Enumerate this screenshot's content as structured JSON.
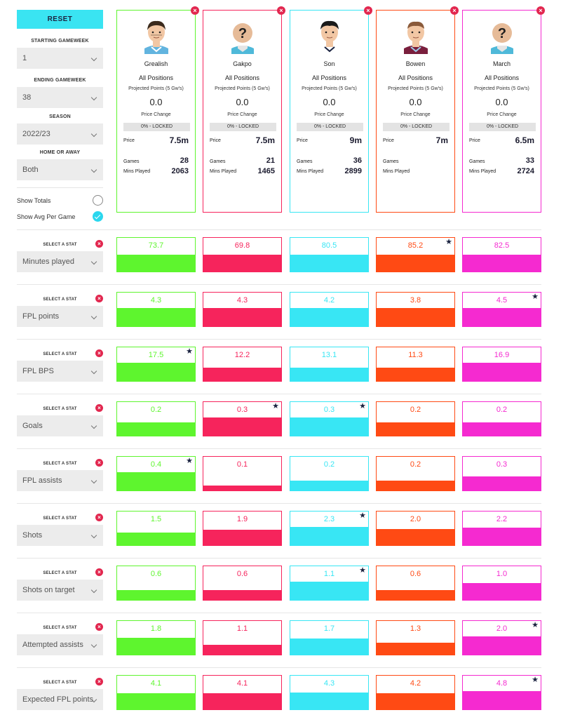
{
  "sidebar": {
    "reset_label": "RESET",
    "starting_gameweek_label": "STARTING GAMEWEEK",
    "starting_gameweek_value": "1",
    "ending_gameweek_label": "ENDING GAMEWEEK",
    "ending_gameweek_value": "38",
    "season_label": "SEASON",
    "season_value": "2022/23",
    "home_away_label": "HOME OR AWAY",
    "home_away_value": "Both",
    "show_totals_label": "Show Totals",
    "show_totals_checked": false,
    "show_avg_label": "Show Avg Per Game",
    "show_avg_checked": true
  },
  "player_labels": {
    "projected": "Projected Points (5 Gw's)",
    "price_change": "Price Change",
    "price": "Price",
    "games": "Games",
    "mins": "Mins Played"
  },
  "players": [
    {
      "name": "Grealish",
      "position": "All Positions",
      "projected": "0.0",
      "price_change": "0% - LOCKED",
      "price": "7.5m",
      "games": "28",
      "mins": "2063",
      "color": "#5ef52e",
      "face": "grealish"
    },
    {
      "name": "Gakpo",
      "position": "All Positions",
      "projected": "0.0",
      "price_change": "0% - LOCKED",
      "price": "7.5m",
      "games": "21",
      "mins": "1465",
      "color": "#f6245c",
      "face": "unknown"
    },
    {
      "name": "Son",
      "position": "All Positions",
      "projected": "0.0",
      "price_change": "0% - LOCKED",
      "price": "9m",
      "games": "36",
      "mins": "2899",
      "color": "#38e6f4",
      "face": "son"
    },
    {
      "name": "Bowen",
      "position": "All Positions",
      "projected": "0.0",
      "price_change": "0% - LOCKED",
      "price": "7m",
      "games": "",
      "mins": "",
      "color": "#ff4a14",
      "face": "bowen"
    },
    {
      "name": "March",
      "position": "All Positions",
      "projected": "0.0",
      "price_change": "0% - LOCKED",
      "price": "6.5m",
      "games": "33",
      "mins": "2724",
      "color": "#f52ad0",
      "face": "unknown"
    }
  ],
  "select_stat_label": "SELECT A STAT",
  "stats": [
    {
      "label": "Minutes played",
      "values": [
        "73.7",
        "69.8",
        "80.5",
        "85.2",
        "82.5"
      ],
      "fill": [
        0.5,
        0.5,
        0.5,
        0.5,
        0.5
      ],
      "star": 3
    },
    {
      "label": "FPL points",
      "values": [
        "4.3",
        "4.3",
        "4.2",
        "3.8",
        "4.5"
      ],
      "fill": [
        0.55,
        0.55,
        0.55,
        0.55,
        0.55
      ],
      "star": 4
    },
    {
      "label": "FPL BPS",
      "values": [
        "17.5",
        "12.2",
        "13.1",
        "11.3",
        "16.9"
      ],
      "fill": [
        0.55,
        0.4,
        0.4,
        0.4,
        0.55
      ],
      "star": 0
    },
    {
      "label": "Goals",
      "values": [
        "0.2",
        "0.3",
        "0.3",
        "0.2",
        "0.2"
      ],
      "fill": [
        0.4,
        0.55,
        0.55,
        0.4,
        0.4
      ],
      "star": [
        1,
        2
      ]
    },
    {
      "label": "FPL assists",
      "values": [
        "0.4",
        "0.1",
        "0.2",
        "0.2",
        "0.3"
      ],
      "fill": [
        0.55,
        0.15,
        0.3,
        0.3,
        0.42
      ],
      "star": 0
    },
    {
      "label": "Shots",
      "values": [
        "1.5",
        "1.9",
        "2.3",
        "2.0",
        "2.2"
      ],
      "fill": [
        0.38,
        0.45,
        0.55,
        0.47,
        0.52
      ],
      "star": 2
    },
    {
      "label": "Shots on target",
      "values": [
        "0.6",
        "0.6",
        "1.1",
        "0.6",
        "1.0"
      ],
      "fill": [
        0.3,
        0.3,
        0.55,
        0.3,
        0.5
      ],
      "star": 2
    },
    {
      "label": "Attempted assists",
      "values": [
        "1.8",
        "1.1",
        "1.7",
        "1.3",
        "2.0"
      ],
      "fill": [
        0.5,
        0.3,
        0.47,
        0.36,
        0.55
      ],
      "star": 4
    },
    {
      "label": "Expected FPL points",
      "values": [
        "4.1",
        "4.1",
        "4.3",
        "4.2",
        "4.8"
      ],
      "fill": [
        0.47,
        0.47,
        0.5,
        0.48,
        0.55
      ],
      "star": 4
    }
  ]
}
